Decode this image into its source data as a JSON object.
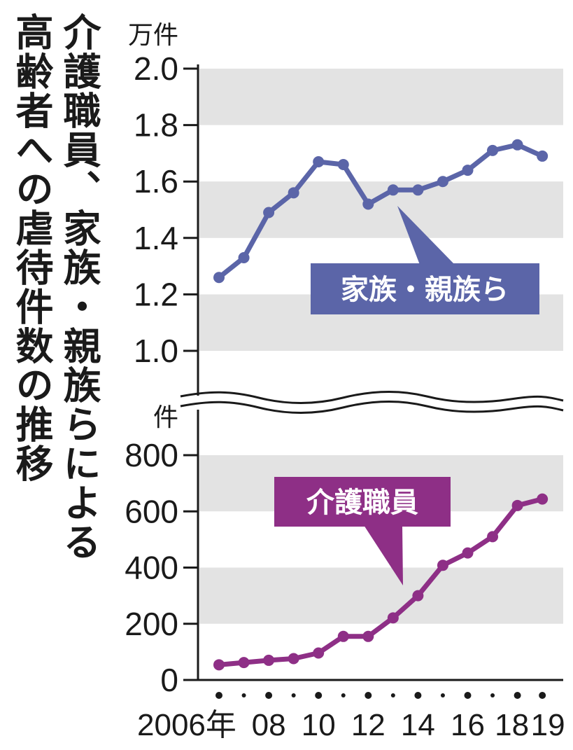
{
  "chart_data": {
    "type": "line",
    "title_lines": [
      "介護職員、家族・親族らによる",
      "高齢者への虐待件数の推移"
    ],
    "x": [
      2006,
      2007,
      2008,
      2009,
      2010,
      2011,
      2012,
      2013,
      2014,
      2015,
      2016,
      2017,
      2018,
      2019
    ],
    "x_tick_labels": [
      {
        "x": 2006,
        "label": "2006年"
      },
      {
        "x": 2008,
        "label": "08"
      },
      {
        "x": 2010,
        "label": "10"
      },
      {
        "x": 2012,
        "label": "12"
      },
      {
        "x": 2014,
        "label": "14"
      },
      {
        "x": 2016,
        "label": "16"
      },
      {
        "x": 2018,
        "label": "18"
      },
      {
        "x": 2019,
        "label": "19"
      }
    ],
    "panels": [
      {
        "unit": "万件",
        "ylim": [
          0.85,
          2.0
        ],
        "yticks": [
          "2.0",
          "1.8",
          "1.6",
          "1.4",
          "1.2",
          "1.0"
        ],
        "series": [
          {
            "name": "家族・親族ら",
            "color": "#5b65a8",
            "values": [
              1.26,
              1.33,
              1.49,
              1.56,
              1.67,
              1.66,
              1.52,
              1.57,
              1.57,
              1.6,
              1.64,
              1.71,
              1.73,
              1.69
            ]
          }
        ]
      },
      {
        "unit": "件",
        "ylim": [
          0,
          800
        ],
        "yticks": [
          "800",
          "600",
          "400",
          "200",
          "0"
        ],
        "series": [
          {
            "name": "介護職員",
            "color": "#8e2f86",
            "values": [
              54,
              62,
              70,
              76,
              96,
              155,
              155,
              221,
              300,
              408,
              452,
              510,
              621,
              644
            ]
          }
        ]
      }
    ],
    "grid": "alternating gray bands",
    "axis_break": true
  }
}
